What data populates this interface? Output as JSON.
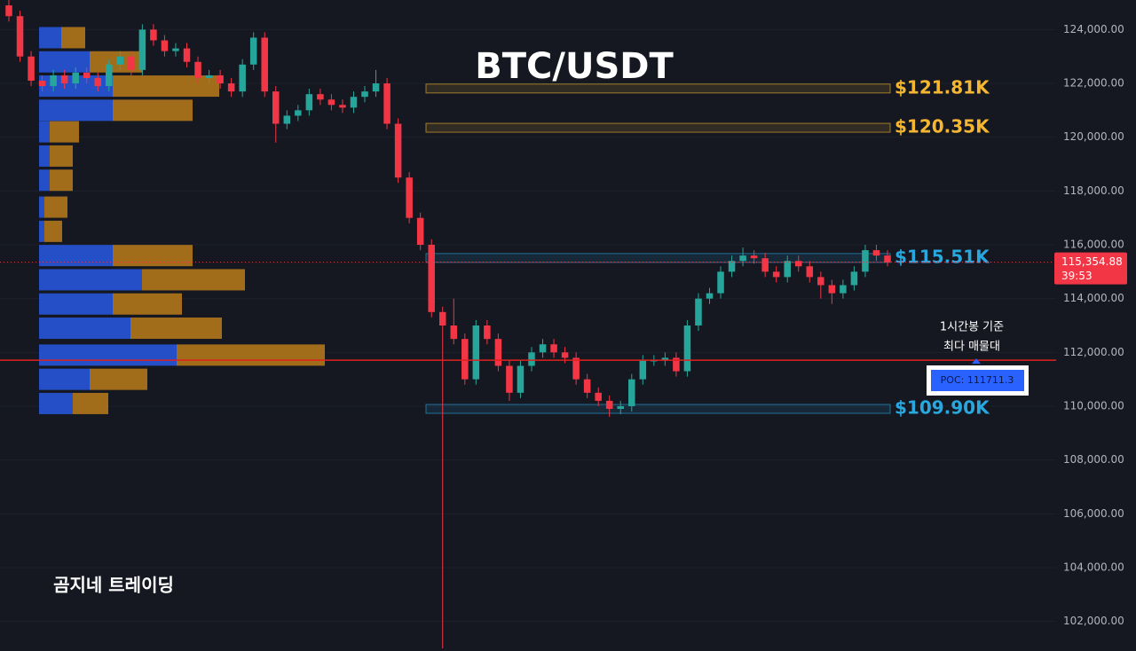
{
  "chart_data": {
    "type": "candlestick",
    "title": "BTC/USDT",
    "watermark": "곰지네 트레이딩",
    "up_color": "#26a69a",
    "down_color": "#f23645",
    "grid": true,
    "ylim": [
      100900,
      125100
    ],
    "yticks": [
      {
        "value": 102000,
        "label": "102,000.00"
      },
      {
        "value": 104000,
        "label": "104,000.00"
      },
      {
        "value": 106000,
        "label": "106,000.00"
      },
      {
        "value": 108000,
        "label": "108,000.00"
      },
      {
        "value": 110000,
        "label": "110,000.00"
      },
      {
        "value": 112000,
        "label": "112,000.00"
      },
      {
        "value": 114000,
        "label": "114,000.00"
      },
      {
        "value": 116000,
        "label": "116,000.00"
      },
      {
        "value": 118000,
        "label": "118,000.00"
      },
      {
        "value": 120000,
        "label": "120,000.00"
      },
      {
        "value": 122000,
        "label": "122,000.00"
      },
      {
        "value": 124000,
        "label": "124,000.00"
      }
    ],
    "open": [
      124900,
      124500,
      123000,
      122100,
      121900,
      122300,
      122000,
      122400,
      122200,
      121900,
      122700,
      123000,
      122500,
      124000,
      123600,
      123200,
      123300,
      122800,
      122200,
      122300,
      122000,
      121700,
      122700,
      123700,
      121700,
      120500,
      120800,
      121000,
      121600,
      121400,
      121200,
      121100,
      121500,
      121700,
      122000,
      120500,
      118500,
      117000,
      116000,
      113500,
      113000,
      112500,
      111000,
      113000,
      112500,
      111500,
      110500,
      111500,
      112000,
      112300,
      112000,
      111800,
      111000,
      110500,
      110200,
      109900,
      110000,
      111000,
      111700,
      111700,
      111800,
      111300,
      113000,
      114000,
      114200,
      115000,
      115400,
      115600,
      115500,
      115000,
      114800,
      115400,
      115200,
      114800,
      114500,
      114200,
      114500,
      115000,
      115800,
      115600
    ],
    "high": [
      125100,
      124700,
      123200,
      122300,
      122500,
      122500,
      122600,
      122600,
      122400,
      122900,
      123200,
      123200,
      124200,
      124200,
      123800,
      123500,
      123500,
      123000,
      122500,
      122500,
      122200,
      122900,
      123900,
      123900,
      121900,
      121000,
      121200,
      121800,
      121800,
      121600,
      121400,
      121700,
      121900,
      122500,
      122200,
      120700,
      118700,
      117200,
      116200,
      113700,
      114000,
      112700,
      113200,
      113200,
      112700,
      111700,
      111700,
      112200,
      112500,
      112500,
      112200,
      112000,
      111200,
      110700,
      110400,
      110200,
      111200,
      111900,
      111900,
      112000,
      112000,
      113200,
      114200,
      114400,
      115200,
      115600,
      115900,
      115800,
      115700,
      115200,
      115600,
      115600,
      115400,
      115000,
      114700,
      114700,
      115200,
      116000,
      116000,
      115800
    ],
    "low": [
      124300,
      122800,
      121900,
      121700,
      121700,
      121800,
      121800,
      122000,
      121700,
      121700,
      122500,
      122300,
      122300,
      123400,
      123000,
      123000,
      122600,
      122000,
      122000,
      121800,
      121500,
      121500,
      122500,
      121500,
      119800,
      120300,
      120600,
      120800,
      121200,
      121000,
      120900,
      120900,
      121300,
      121500,
      120300,
      118300,
      116800,
      115800,
      113300,
      101000,
      112300,
      110800,
      110800,
      112300,
      111300,
      110200,
      110300,
      111300,
      111800,
      111800,
      111600,
      110800,
      110300,
      110000,
      109600,
      109700,
      109800,
      110800,
      111500,
      111500,
      111100,
      111100,
      112800,
      113800,
      114000,
      114800,
      115200,
      115300,
      114800,
      114600,
      114600,
      115000,
      114600,
      114000,
      113800,
      114000,
      114300,
      114800,
      115400,
      115200
    ],
    "close": [
      124500,
      123000,
      122100,
      121900,
      122300,
      122000,
      122400,
      122200,
      121900,
      122700,
      123000,
      122500,
      124000,
      123600,
      123200,
      123300,
      122800,
      122200,
      122300,
      122000,
      121700,
      122700,
      123700,
      121700,
      120500,
      120800,
      121000,
      121600,
      121400,
      121200,
      121100,
      121500,
      121700,
      122000,
      120500,
      118500,
      117000,
      116000,
      113500,
      113000,
      112500,
      111000,
      113000,
      112500,
      111500,
      110500,
      111500,
      112000,
      112300,
      112000,
      111800,
      111000,
      110500,
      110200,
      109900,
      110000,
      111000,
      111700,
      111700,
      111800,
      111300,
      113000,
      114000,
      114200,
      115000,
      115400,
      115600,
      115500,
      115000,
      114800,
      115400,
      115200,
      114800,
      114500,
      114200,
      114500,
      115000,
      115800,
      115600,
      115350
    ],
    "levels": [
      {
        "value": 121810,
        "label": "$121.81K",
        "color": "#f5b731"
      },
      {
        "value": 120350,
        "label": "$120.35K",
        "color": "#f5b731"
      },
      {
        "value": 115510,
        "label": "$115.51K",
        "color": "#29a8e0"
      },
      {
        "value": 109900,
        "label": "$109.90K",
        "color": "#29a8e0"
      }
    ],
    "poc": {
      "value": 111711.3,
      "label": "POC: 111711.3",
      "note": [
        "1시간봉 기준",
        "최다 매물대"
      ],
      "color": "#e0201e"
    },
    "last_price": {
      "value": 115354.88,
      "label": "115,354.88",
      "countdown": "39:53"
    },
    "volume_profile": {
      "xlim": [
        0,
        340
      ],
      "buy_color": "#2962ff",
      "sell_color": "#d08a18",
      "prices": [
        123700,
        122800,
        121900,
        121000,
        120200,
        119300,
        118400,
        117400,
        116500,
        115600,
        114700,
        113800,
        112900,
        111900,
        111000,
        110100
      ],
      "buy": [
        25,
        57,
        83,
        83,
        12,
        12,
        12,
        6,
        6,
        83,
        116,
        83,
        103,
        155,
        57,
        38
      ],
      "sell": [
        27,
        60,
        120,
        90,
        33,
        26,
        26,
        26,
        20,
        90,
        116,
        78,
        103,
        167,
        65,
        40
      ]
    }
  }
}
